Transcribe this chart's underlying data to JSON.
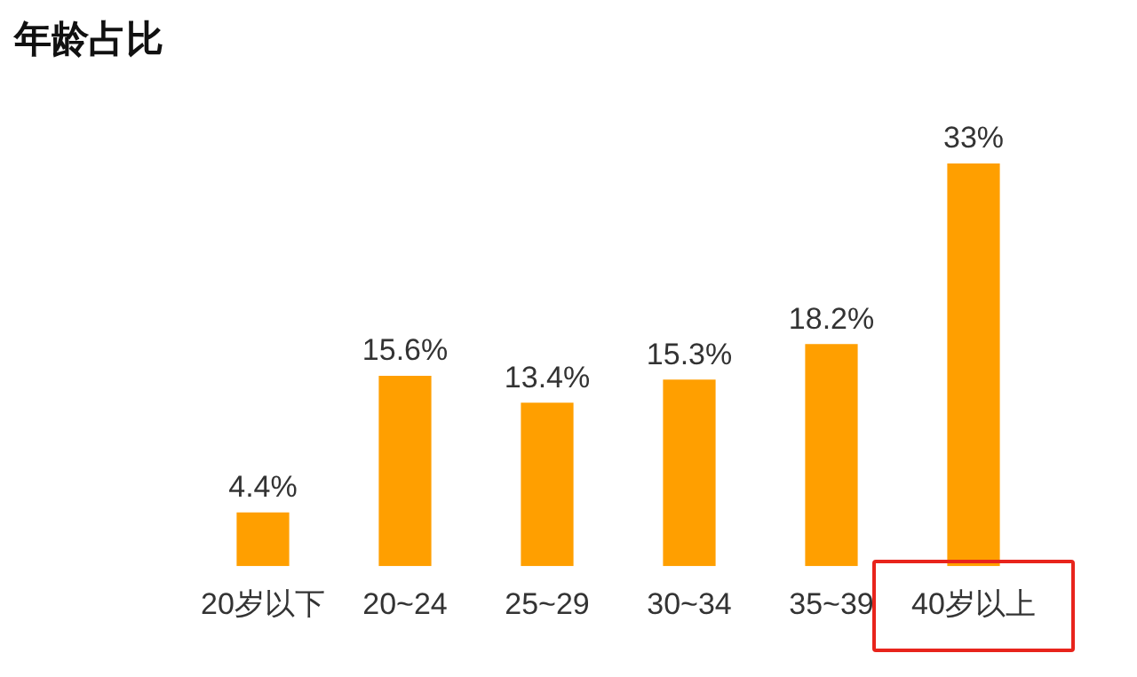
{
  "chart_data": {
    "type": "bar",
    "title": "年龄占比",
    "categories": [
      "20岁以下",
      "20~24",
      "25~29",
      "30~34",
      "35~39",
      "40岁以上"
    ],
    "values": [
      4.4,
      15.6,
      13.4,
      15.3,
      18.2,
      33
    ],
    "value_labels": [
      "4.4%",
      "15.6%",
      "13.4%",
      "15.3%",
      "18.2%",
      "33%"
    ],
    "color": "#ff9f00",
    "grid": false,
    "legend": false
  }
}
